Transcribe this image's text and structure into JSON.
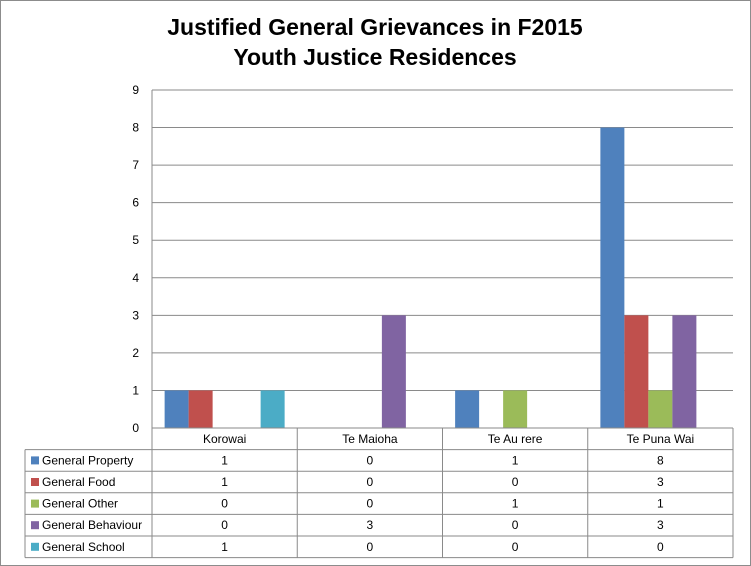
{
  "chart_data": {
    "type": "bar",
    "title_lines": [
      "Justified General Grievances in F2015",
      "Youth Justice Residences"
    ],
    "categories": [
      "Korowai",
      "Te Maioha",
      "Te Au rere",
      "Te Puna Wai"
    ],
    "series": [
      {
        "name": "General Property",
        "color": "#4F81BD",
        "values": [
          1,
          0,
          1,
          8
        ]
      },
      {
        "name": "General Food",
        "color": "#C0504D",
        "values": [
          1,
          0,
          0,
          3
        ]
      },
      {
        "name": "General Other",
        "color": "#9BBB59",
        "values": [
          0,
          0,
          1,
          1
        ]
      },
      {
        "name": "General Behaviour",
        "color": "#8064A2",
        "values": [
          0,
          3,
          0,
          3
        ]
      },
      {
        "name": "General School",
        "color": "#4BACC6",
        "values": [
          1,
          0,
          0,
          0
        ]
      }
    ],
    "ylim": [
      0,
      9
    ],
    "yticks": [
      0,
      1,
      2,
      3,
      4,
      5,
      6,
      7,
      8,
      9
    ],
    "grid": true,
    "legend": "data-table"
  }
}
